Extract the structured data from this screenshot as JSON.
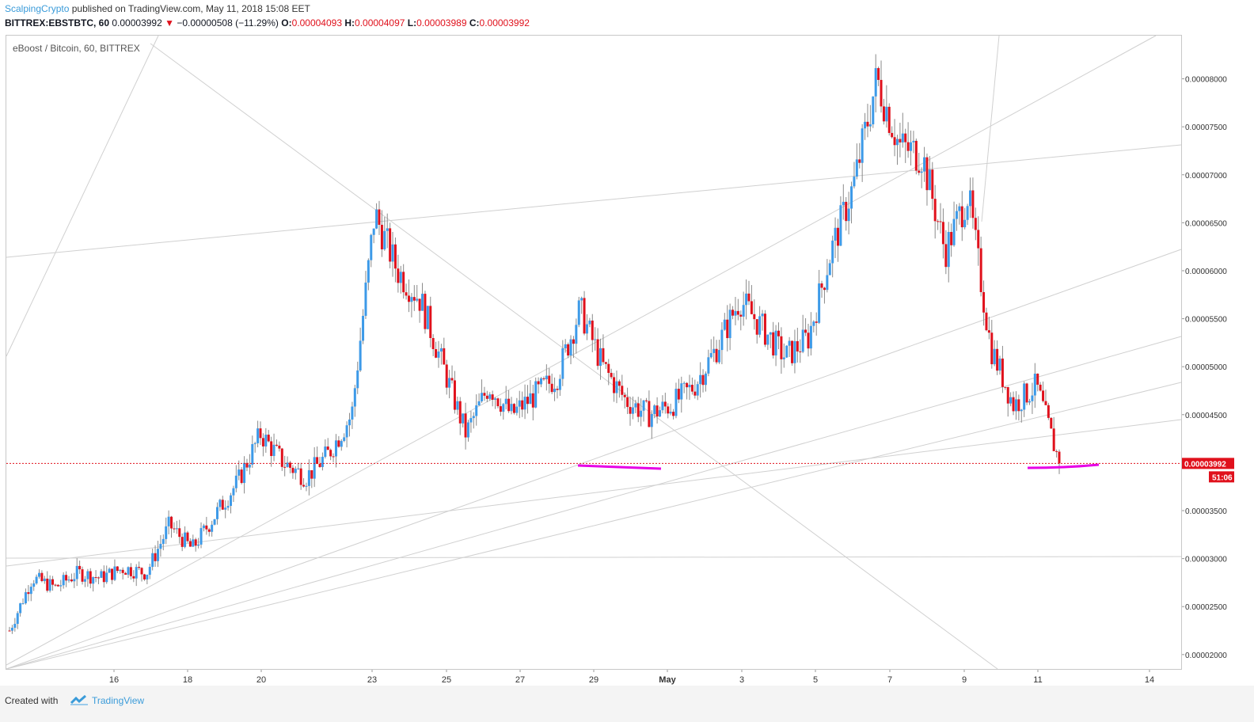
{
  "header": {
    "user": "ScalpingCrypto",
    "published": "published on TradingView.com, May 11, 2018 15:08 EET",
    "symbol": "BITTREX:EBSTBTC, 60",
    "last": "0.00003992",
    "change": "−0.00000508 (−11.29%)",
    "o_label": "O:",
    "o": "0.00004093",
    "h_label": "H:",
    "h": "0.00004097",
    "l_label": "L:",
    "l": "0.00003989",
    "c_label": "C:",
    "c": "0.00003992"
  },
  "instrument_label": "eBoost / Bitcoin, 60, BITTREX",
  "footer": {
    "created": "Created with",
    "brand": "TradingView"
  },
  "colors": {
    "up": "#3d9ae8",
    "down": "#e0111c",
    "wick": "#8a8a8a",
    "trend": "#d0d0d0",
    "highlight": "#e600e6"
  },
  "chart_data": {
    "type": "candlestick",
    "x_ticks": [
      "16",
      "18",
      "20",
      "23",
      "25",
      "27",
      "29",
      "May",
      "3",
      "5",
      "7",
      "9",
      "11",
      "14"
    ],
    "y_ticks": [
      "0.00008000",
      "0.00007500",
      "0.00007000",
      "0.00006500",
      "0.00006000",
      "0.00005500",
      "0.00005000",
      "0.00004500",
      "0.00003500",
      "0.00003000",
      "0.00002500",
      "0.00002000"
    ],
    "y_range": [
      1.85e-05,
      8.45e-05
    ],
    "last_price": 3.992e-05,
    "last_price_label": "0.00003992",
    "countdown": "51:06",
    "series": [
      {
        "x": 0,
        "y": 2.25e-05
      },
      {
        "x": 1,
        "y": 2.8e-05
      },
      {
        "x": 2,
        "y": 2.7e-05
      },
      {
        "x": 3,
        "y": 2.85e-05
      },
      {
        "x": 4,
        "y": 2.8e-05
      },
      {
        "x": 5,
        "y": 2.9e-05
      },
      {
        "x": 6,
        "y": 2.85e-05
      },
      {
        "x": 7,
        "y": 3.35e-05
      },
      {
        "x": 8,
        "y": 3.1e-05
      },
      {
        "x": 9,
        "y": 3.45e-05
      },
      {
        "x": 10,
        "y": 3.8e-05
      },
      {
        "x": 11,
        "y": 4.3e-05
      },
      {
        "x": 12,
        "y": 4e-05
      },
      {
        "x": 13,
        "y": 3.85e-05
      },
      {
        "x": 14,
        "y": 4.1e-05
      },
      {
        "x": 15,
        "y": 4.5e-05
      },
      {
        "x": 16,
        "y": 6.6e-05
      },
      {
        "x": 17,
        "y": 6e-05
      },
      {
        "x": 18,
        "y": 5.7e-05
      },
      {
        "x": 19,
        "y": 5e-05
      },
      {
        "x": 20,
        "y": 4.3e-05
      },
      {
        "x": 21,
        "y": 4.8e-05
      },
      {
        "x": 22,
        "y": 4.5e-05
      },
      {
        "x": 23,
        "y": 4.7e-05
      },
      {
        "x": 24,
        "y": 4.9e-05
      },
      {
        "x": 25,
        "y": 5.6e-05
      },
      {
        "x": 26,
        "y": 5e-05
      },
      {
        "x": 27,
        "y": 4.65e-05
      },
      {
        "x": 28,
        "y": 4.5e-05
      },
      {
        "x": 29,
        "y": 4.6e-05
      },
      {
        "x": 30,
        "y": 4.8e-05
      },
      {
        "x": 31,
        "y": 5.2e-05
      },
      {
        "x": 32,
        "y": 5.7e-05
      },
      {
        "x": 33,
        "y": 5.4e-05
      },
      {
        "x": 34,
        "y": 5.1e-05
      },
      {
        "x": 35,
        "y": 5.3e-05
      },
      {
        "x": 36,
        "y": 6.2e-05
      },
      {
        "x": 37,
        "y": 6.9e-05
      },
      {
        "x": 38,
        "y": 8e-05
      },
      {
        "x": 39,
        "y": 7.3e-05
      },
      {
        "x": 40,
        "y": 7.2e-05
      },
      {
        "x": 41,
        "y": 6.2e-05
      },
      {
        "x": 42,
        "y": 6.8e-05
      },
      {
        "x": 43,
        "y": 5.2e-05
      },
      {
        "x": 44,
        "y": 4.6e-05
      },
      {
        "x": 45,
        "y": 4.8e-05
      },
      {
        "x": 46,
        "y": 4e-05
      }
    ],
    "grid": false
  }
}
